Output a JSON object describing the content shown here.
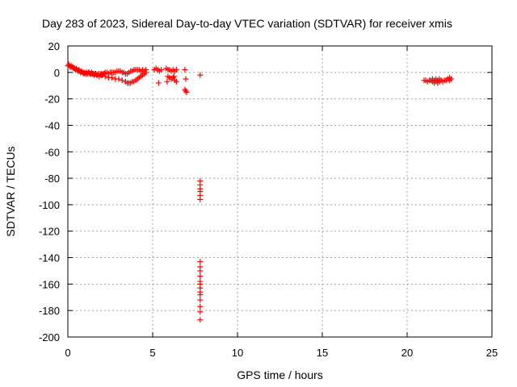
{
  "chart_data": {
    "type": "scatter",
    "title": "Day 283 of 2023, Sidereal Day-to-day VTEC variation (SDTVAR) for receiver xmis",
    "xlabel": "GPS time / hours",
    "ylabel": "SDTVAR / TECUs",
    "xlim": [
      0,
      25
    ],
    "ylim": [
      -200,
      20
    ],
    "xticks": [
      "0",
      "5",
      "10",
      "15",
      "20",
      "25"
    ],
    "yticks": [
      "20",
      "0",
      "-20",
      "-40",
      "-60",
      "-80",
      "-100",
      "-120",
      "-140",
      "-160",
      "-180",
      "-200"
    ],
    "grid": true,
    "marker": "+",
    "color": "#ff0000",
    "points": [
      [
        0.0,
        5
      ],
      [
        0.05,
        6
      ],
      [
        0.1,
        5
      ],
      [
        0.15,
        4
      ],
      [
        0.2,
        5
      ],
      [
        0.25,
        4
      ],
      [
        0.3,
        4
      ],
      [
        0.35,
        3
      ],
      [
        0.4,
        3
      ],
      [
        0.45,
        2
      ],
      [
        0.5,
        3
      ],
      [
        0.55,
        2
      ],
      [
        0.6,
        1
      ],
      [
        0.65,
        2
      ],
      [
        0.7,
        1
      ],
      [
        0.75,
        0
      ],
      [
        0.8,
        1
      ],
      [
        0.85,
        0
      ],
      [
        0.9,
        0
      ],
      [
        0.95,
        -1
      ],
      [
        1.0,
        0
      ],
      [
        1.05,
        -1
      ],
      [
        1.1,
        0
      ],
      [
        1.15,
        -1
      ],
      [
        1.2,
        0
      ],
      [
        1.25,
        0
      ],
      [
        1.3,
        -1
      ],
      [
        1.35,
        -1
      ],
      [
        1.4,
        0
      ],
      [
        1.45,
        -1
      ],
      [
        1.5,
        -1
      ],
      [
        1.55,
        -2
      ],
      [
        1.6,
        -1
      ],
      [
        1.65,
        -1
      ],
      [
        1.7,
        -2
      ],
      [
        1.75,
        -2
      ],
      [
        1.8,
        -1
      ],
      [
        1.85,
        -3
      ],
      [
        1.9,
        -1
      ],
      [
        1.95,
        -2
      ],
      [
        2.0,
        -1
      ],
      [
        2.05,
        -2
      ],
      [
        2.1,
        -1
      ],
      [
        2.15,
        -1
      ],
      [
        2.2,
        0
      ],
      [
        2.3,
        0
      ],
      [
        2.4,
        -1
      ],
      [
        2.5,
        0
      ],
      [
        2.6,
        0
      ],
      [
        2.7,
        0
      ],
      [
        2.8,
        0
      ],
      [
        2.9,
        1
      ],
      [
        3.0,
        1
      ],
      [
        3.1,
        1
      ],
      [
        3.2,
        0
      ],
      [
        3.3,
        0
      ],
      [
        3.4,
        -1
      ],
      [
        3.5,
        -1
      ],
      [
        3.6,
        0
      ],
      [
        3.7,
        1
      ],
      [
        3.8,
        1
      ],
      [
        3.9,
        2
      ],
      [
        4.0,
        2
      ],
      [
        4.1,
        2
      ],
      [
        4.2,
        2
      ],
      [
        4.3,
        1
      ],
      [
        4.4,
        2
      ],
      [
        4.5,
        1
      ],
      [
        4.6,
        2
      ],
      [
        2.0,
        -2
      ],
      [
        2.2,
        -3
      ],
      [
        2.4,
        -4
      ],
      [
        2.6,
        -4
      ],
      [
        2.8,
        -5
      ],
      [
        3.0,
        -5
      ],
      [
        3.2,
        -6
      ],
      [
        3.4,
        -7
      ],
      [
        3.5,
        -8
      ],
      [
        3.6,
        -8
      ],
      [
        3.7,
        -8
      ],
      [
        3.8,
        -7
      ],
      [
        3.9,
        -7
      ],
      [
        4.0,
        -6
      ],
      [
        4.1,
        -5
      ],
      [
        4.2,
        -4
      ],
      [
        4.3,
        -3
      ],
      [
        4.4,
        -2
      ],
      [
        4.5,
        -1
      ],
      [
        4.6,
        0
      ],
      [
        5.1,
        2
      ],
      [
        5.2,
        3
      ],
      [
        5.3,
        2
      ],
      [
        5.4,
        1
      ],
      [
        5.5,
        2
      ],
      [
        5.35,
        -8
      ],
      [
        5.8,
        3
      ],
      [
        5.9,
        2
      ],
      [
        6.0,
        2
      ],
      [
        6.1,
        1
      ],
      [
        6.2,
        2
      ],
      [
        6.3,
        1
      ],
      [
        6.4,
        2
      ],
      [
        5.9,
        -3
      ],
      [
        6.0,
        -4
      ],
      [
        6.1,
        -5
      ],
      [
        6.2,
        -4
      ],
      [
        6.3,
        -6
      ],
      [
        6.4,
        -7
      ],
      [
        6.25,
        -3
      ],
      [
        5.85,
        -7
      ],
      [
        6.9,
        2
      ],
      [
        6.95,
        -5
      ],
      [
        6.9,
        -13
      ],
      [
        6.95,
        -14
      ],
      [
        7.0,
        -15
      ],
      [
        7.8,
        -2
      ],
      [
        7.8,
        -82
      ],
      [
        7.8,
        -85
      ],
      [
        7.8,
        -88
      ],
      [
        7.8,
        -90
      ],
      [
        7.8,
        -93
      ],
      [
        7.8,
        -96
      ],
      [
        7.8,
        -143
      ],
      [
        7.8,
        -147
      ],
      [
        7.8,
        -150
      ],
      [
        7.8,
        -154
      ],
      [
        7.8,
        -158
      ],
      [
        7.8,
        -160
      ],
      [
        7.8,
        -163
      ],
      [
        7.8,
        -166
      ],
      [
        7.8,
        -168
      ],
      [
        7.8,
        -172
      ],
      [
        7.8,
        -177
      ],
      [
        7.8,
        -181
      ],
      [
        7.8,
        -187
      ],
      [
        21.0,
        -6
      ],
      [
        21.1,
        -6
      ],
      [
        21.2,
        -7
      ],
      [
        21.3,
        -6
      ],
      [
        21.4,
        -6
      ],
      [
        21.5,
        -7
      ],
      [
        21.6,
        -6
      ],
      [
        21.7,
        -7
      ],
      [
        21.8,
        -6
      ],
      [
        21.9,
        -7
      ],
      [
        22.0,
        -6
      ],
      [
        22.1,
        -7
      ],
      [
        22.2,
        -6
      ],
      [
        22.3,
        -6
      ],
      [
        22.4,
        -5
      ],
      [
        22.5,
        -6
      ],
      [
        22.6,
        -5
      ],
      [
        21.5,
        -5
      ],
      [
        21.7,
        -5
      ],
      [
        21.9,
        -5
      ],
      [
        21.6,
        -8
      ],
      [
        21.8,
        -8
      ],
      [
        22.5,
        -4
      ]
    ]
  }
}
